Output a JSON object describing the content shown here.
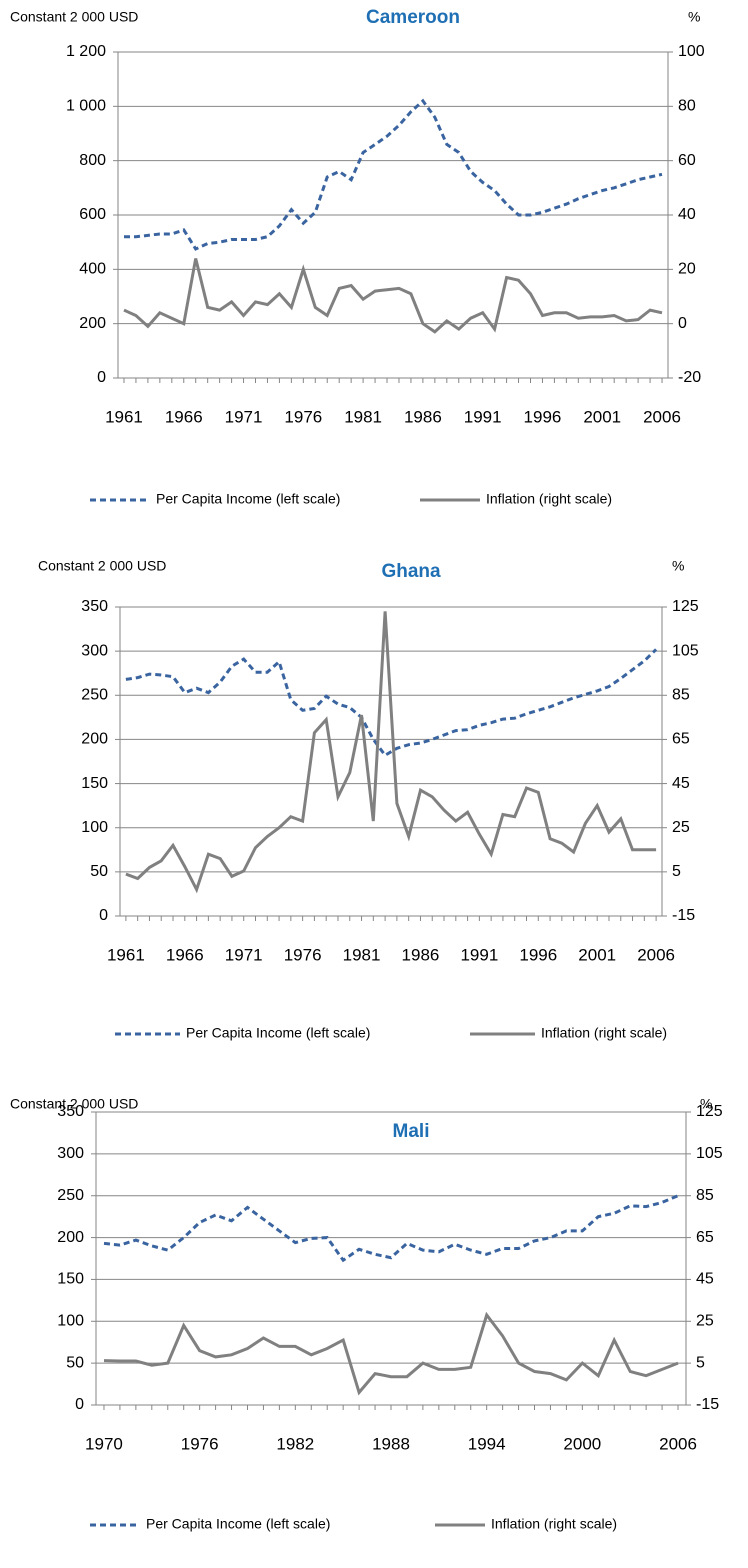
{
  "chart_data": [
    {
      "type": "line",
      "title": "Cameroon",
      "title_color": "#1f6fb4",
      "y_label": "Constant 2 000 USD",
      "y2_label": "%",
      "grid": true,
      "x": [
        1961,
        1962,
        1963,
        1964,
        1965,
        1966,
        1967,
        1968,
        1969,
        1970,
        1971,
        1972,
        1973,
        1974,
        1975,
        1976,
        1977,
        1978,
        1979,
        1980,
        1981,
        1982,
        1983,
        1984,
        1985,
        1986,
        1987,
        1988,
        1989,
        1990,
        1991,
        1992,
        1993,
        1994,
        1995,
        1996,
        1997,
        1998,
        1999,
        2000,
        2001,
        2002,
        2003,
        2004,
        2005,
        2006
      ],
      "xlim": [
        1960.5,
        2006.5
      ],
      "xticks": [
        1961,
        1966,
        1971,
        1976,
        1981,
        1986,
        1991,
        1996,
        2001,
        2006
      ],
      "ylim": [
        0,
        1200
      ],
      "yticks": [
        0,
        200,
        400,
        600,
        800,
        {
          "value": 1000,
          "label": "1 000"
        },
        {
          "value": 1200,
          "label": "1 200"
        }
      ],
      "y2lim": [
        -20,
        100
      ],
      "y2ticks": [
        -20,
        0,
        20,
        40,
        60,
        80,
        100
      ],
      "series": [
        {
          "name": "Per Capita Income (left scale)",
          "color": "#3a64a0",
          "style": "dashed",
          "values": [
            520,
            520,
            525,
            530,
            530,
            545,
            475,
            495,
            500,
            510,
            510,
            510,
            520,
            560,
            620,
            570,
            610,
            740,
            760,
            730,
            830,
            860,
            890,
            930,
            980,
            1020,
            960,
            860,
            830,
            760,
            720,
            690,
            640,
            600,
            600,
            610,
            625,
            640,
            660,
            675,
            690,
            700,
            715,
            730,
            740,
            750
          ]
        },
        {
          "name": "Inflation (right scale)",
          "color": "#808080",
          "style": "solid",
          "axis": "y2",
          "values": [
            5,
            3,
            -1,
            4,
            2,
            0,
            24,
            6,
            5,
            8,
            3,
            8,
            7,
            11,
            6,
            20,
            6,
            3,
            13,
            14,
            9,
            12,
            12.5,
            13,
            11,
            0,
            -3,
            1,
            -2,
            2,
            4,
            -2,
            17,
            16,
            11,
            3,
            4,
            4,
            2,
            2.5,
            2.5,
            3,
            1,
            1.5,
            5,
            4
          ]
        }
      ]
    },
    {
      "type": "line",
      "title": "Ghana",
      "title_color": "#1f6fb4",
      "y_label": "Constant 2 000 USD",
      "y2_label": "%",
      "grid": true,
      "x": [
        1961,
        1962,
        1963,
        1964,
        1965,
        1966,
        1967,
        1968,
        1969,
        1970,
        1971,
        1972,
        1973,
        1974,
        1975,
        1976,
        1977,
        1978,
        1979,
        1980,
        1981,
        1982,
        1983,
        1984,
        1985,
        1986,
        1987,
        1988,
        1989,
        1990,
        1991,
        1992,
        1993,
        1994,
        1995,
        1996,
        1997,
        1998,
        1999,
        2000,
        2001,
        2002,
        2003,
        2004,
        2005,
        2006
      ],
      "xlim": [
        1960.5,
        2006.5
      ],
      "xticks": [
        1961,
        1966,
        1971,
        1976,
        1981,
        1986,
        1991,
        1996,
        2001,
        2006
      ],
      "ylim": [
        0,
        350
      ],
      "yticks": [
        0,
        50,
        100,
        150,
        200,
        250,
        300,
        350
      ],
      "y2lim": [
        -15,
        125
      ],
      "y2ticks": [
        -15,
        5,
        25,
        45,
        65,
        85,
        105,
        125
      ],
      "series": [
        {
          "name": "Per Capita Income (left scale)",
          "color": "#3a64a0",
          "style": "dashed",
          "values": [
            268,
            270,
            274,
            273,
            271,
            253,
            258,
            253,
            265,
            283,
            291,
            276,
            276,
            288,
            245,
            233,
            235,
            249,
            240,
            236,
            225,
            200,
            182,
            190,
            194,
            196,
            200,
            205,
            210,
            211,
            216,
            219,
            223,
            224,
            229,
            233,
            237,
            242,
            247,
            251,
            255,
            260,
            269,
            279,
            289,
            302
          ]
        },
        {
          "name": "Inflation (right scale)",
          "color": "#808080",
          "style": "solid",
          "axis": "y2",
          "values": [
            4,
            2,
            7,
            10,
            17,
            7.4,
            -3,
            13,
            11,
            3,
            5.4,
            16,
            21,
            25,
            30,
            28,
            68,
            74,
            39,
            50,
            76,
            28,
            123,
            36,
            21,
            42,
            39,
            33,
            28,
            32,
            22,
            13,
            31,
            30,
            43,
            41,
            20,
            18,
            14,
            27,
            35,
            23,
            29,
            15,
            15,
            15
          ]
        }
      ]
    },
    {
      "type": "line",
      "title": "Mali",
      "title_color": "#1f6fb4",
      "y_label": "Constant 2 000 USD",
      "y2_label": "%",
      "grid": true,
      "x": [
        1970,
        1971,
        1972,
        1973,
        1974,
        1975,
        1976,
        1977,
        1978,
        1979,
        1980,
        1981,
        1982,
        1983,
        1984,
        1985,
        1986,
        1987,
        1988,
        1989,
        1990,
        1991,
        1992,
        1993,
        1994,
        1995,
        1996,
        1997,
        1998,
        1999,
        2000,
        2001,
        2002,
        2003,
        2004,
        2005,
        2006
      ],
      "xlim": [
        1969.5,
        2006.5
      ],
      "xticks": [
        1970,
        1976,
        1982,
        1988,
        1994,
        2000,
        2006
      ],
      "ylim": [
        0,
        350
      ],
      "yticks": [
        0,
        50,
        100,
        150,
        200,
        250,
        300,
        350
      ],
      "y2lim": [
        -15,
        125
      ],
      "y2ticks": [
        -15,
        5,
        25,
        45,
        65,
        85,
        105,
        125
      ],
      "series": [
        {
          "name": "Per Capita Income (left scale)",
          "color": "#3a64a0",
          "style": "dashed",
          "values": [
            193,
            191,
            197,
            190,
            185,
            200,
            218,
            227,
            220,
            236,
            222,
            208,
            194,
            199,
            200,
            173,
            186,
            180,
            176,
            193,
            185,
            183,
            192,
            185,
            180,
            187,
            187,
            196,
            200,
            208,
            208,
            225,
            229,
            238,
            237,
            242,
            250
          ]
        },
        {
          "name": "Inflation (right scale)",
          "color": "#808080",
          "style": "solid",
          "axis": "y2",
          "values": [
            6.2,
            6,
            6,
            4,
            5,
            23,
            11,
            8,
            9,
            12,
            17,
            13,
            13,
            9,
            12,
            16,
            -9,
            0,
            -1.5,
            -1.5,
            5,
            2,
            2,
            3,
            28,
            18,
            5,
            1,
            0,
            -3,
            5,
            -1,
            16,
            1,
            -1,
            2,
            5
          ]
        }
      ]
    }
  ]
}
